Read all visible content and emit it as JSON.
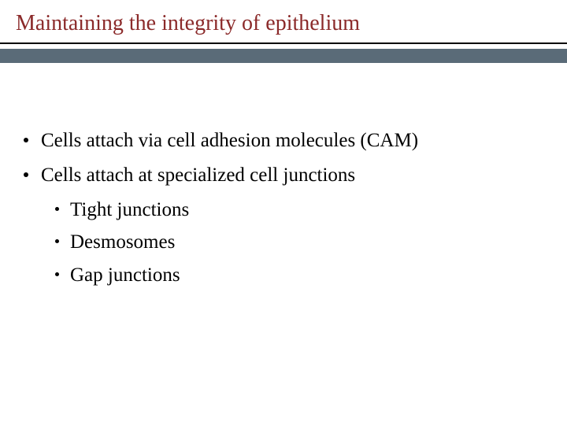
{
  "title": {
    "text": "Maintaining the integrity of epithelium",
    "color": "#8b2a2a",
    "fontsize": 28
  },
  "underline": {
    "thin_color": "#000000",
    "thick_color": "#5a6b78"
  },
  "bullets": {
    "level1": [
      "Cells attach via cell adhesion molecules (CAM)",
      "Cells attach at specialized cell junctions"
    ],
    "level2": [
      "Tight junctions",
      "Desmosomes",
      "Gap junctions"
    ],
    "fontsize": 25,
    "color": "#000000"
  },
  "background_color": "#ffffff"
}
